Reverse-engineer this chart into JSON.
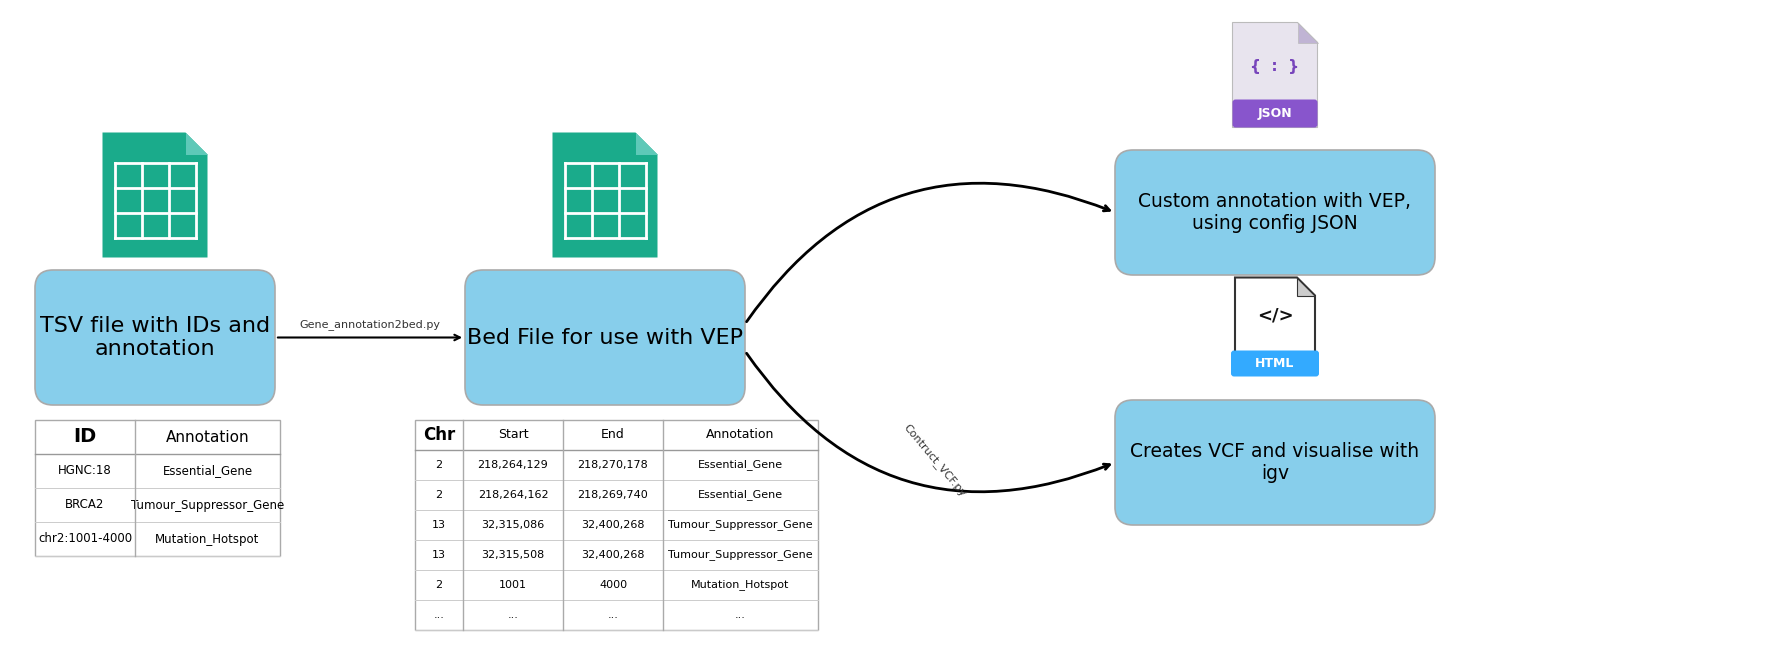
{
  "bg_color": "#ffffff",
  "tsv_box_text": "TSV file with IDs and\nannotation",
  "bed_box_text": "Bed File for use with VEP",
  "vep_box_text": "Custom annotation with VEP,\nusing config JSON",
  "igv_box_text": "Creates VCF and visualise with\nigv",
  "box_color": "#87CEEB",
  "arrow1_label": "Gene_annotation2bed.py",
  "arrow2_label": "Contruct_VCF.py",
  "icon_body_color": "#1aab8b",
  "icon_corner_color": "#2d9e8f",
  "icon_fold_color": "#5ec9b8",
  "json_body_color": "#e8e4ee",
  "json_banner_color": "#8855cc",
  "json_text_color": "#7744bb",
  "html_banner_color": "#33aaff",
  "tsv_table_headers": [
    "ID",
    "Annotation"
  ],
  "tsv_table_rows": [
    [
      "HGNC:18",
      "Essential_Gene"
    ],
    [
      "BRCA2",
      "Tumour_Suppressor_Gene"
    ],
    [
      "chr2:1001-4000",
      "Mutation_Hotspot"
    ]
  ],
  "bed_table_headers": [
    "Chr",
    "Start",
    "End",
    "Annotation"
  ],
  "bed_table_rows": [
    [
      "2",
      "218,264,129",
      "218,270,178",
      "Essential_Gene"
    ],
    [
      "2",
      "218,264,162",
      "218,269,740",
      "Essential_Gene"
    ],
    [
      "13",
      "32,315,086",
      "32,400,268",
      "Tumour_Suppressor_Gene"
    ],
    [
      "13",
      "32,315,508",
      "32,400,268",
      "Tumour_Suppressor_Gene"
    ],
    [
      "2",
      "1001",
      "4000",
      "Mutation_Hotspot"
    ],
    [
      "...",
      "...",
      "...",
      "..."
    ]
  ]
}
